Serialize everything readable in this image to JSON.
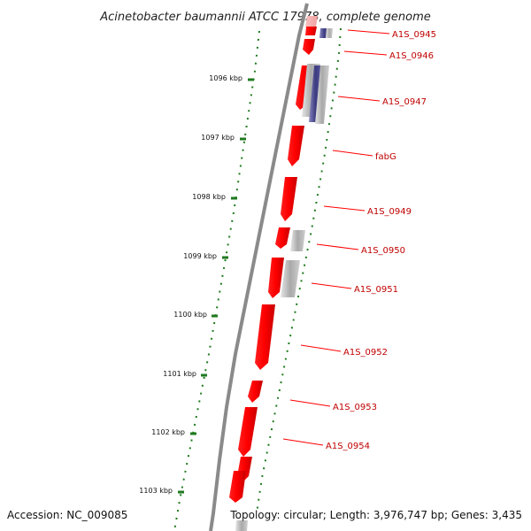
{
  "title": "Acinetobacter baumannii ATCC 17978, complete genome",
  "accession_text": "Accession: NC_009085",
  "topology_text": "Topology: circular; Length: 3,976,747 bp; Genes: 3,435",
  "colors": {
    "forward_gene": "#ff0000",
    "backbone": "#8a8a8a",
    "scale_ticks": "#1f7a1f",
    "label_text": "#c00000",
    "label_line": "#ff0000",
    "blast_purple": "#4b4a8c",
    "blast_grey": "#aaaaaa"
  },
  "scale": [
    {
      "label": "1096 kbp"
    },
    {
      "label": "1097 kbp"
    },
    {
      "label": "1098 kbp"
    },
    {
      "label": "1099 kbp"
    },
    {
      "label": "1100 kbp"
    },
    {
      "label": "1101 kbp"
    },
    {
      "label": "1102 kbp"
    },
    {
      "label": "1103 kbp"
    }
  ],
  "genes": [
    {
      "label": "A1S_0945"
    },
    {
      "label": "A1S_0946"
    },
    {
      "label": "A1S_0947"
    },
    {
      "label": "fabG"
    },
    {
      "label": "A1S_0949"
    },
    {
      "label": "A1S_0950"
    },
    {
      "label": "A1S_0951"
    },
    {
      "label": "A1S_0952"
    },
    {
      "label": "A1S_0953"
    },
    {
      "label": "A1S_0954"
    }
  ]
}
